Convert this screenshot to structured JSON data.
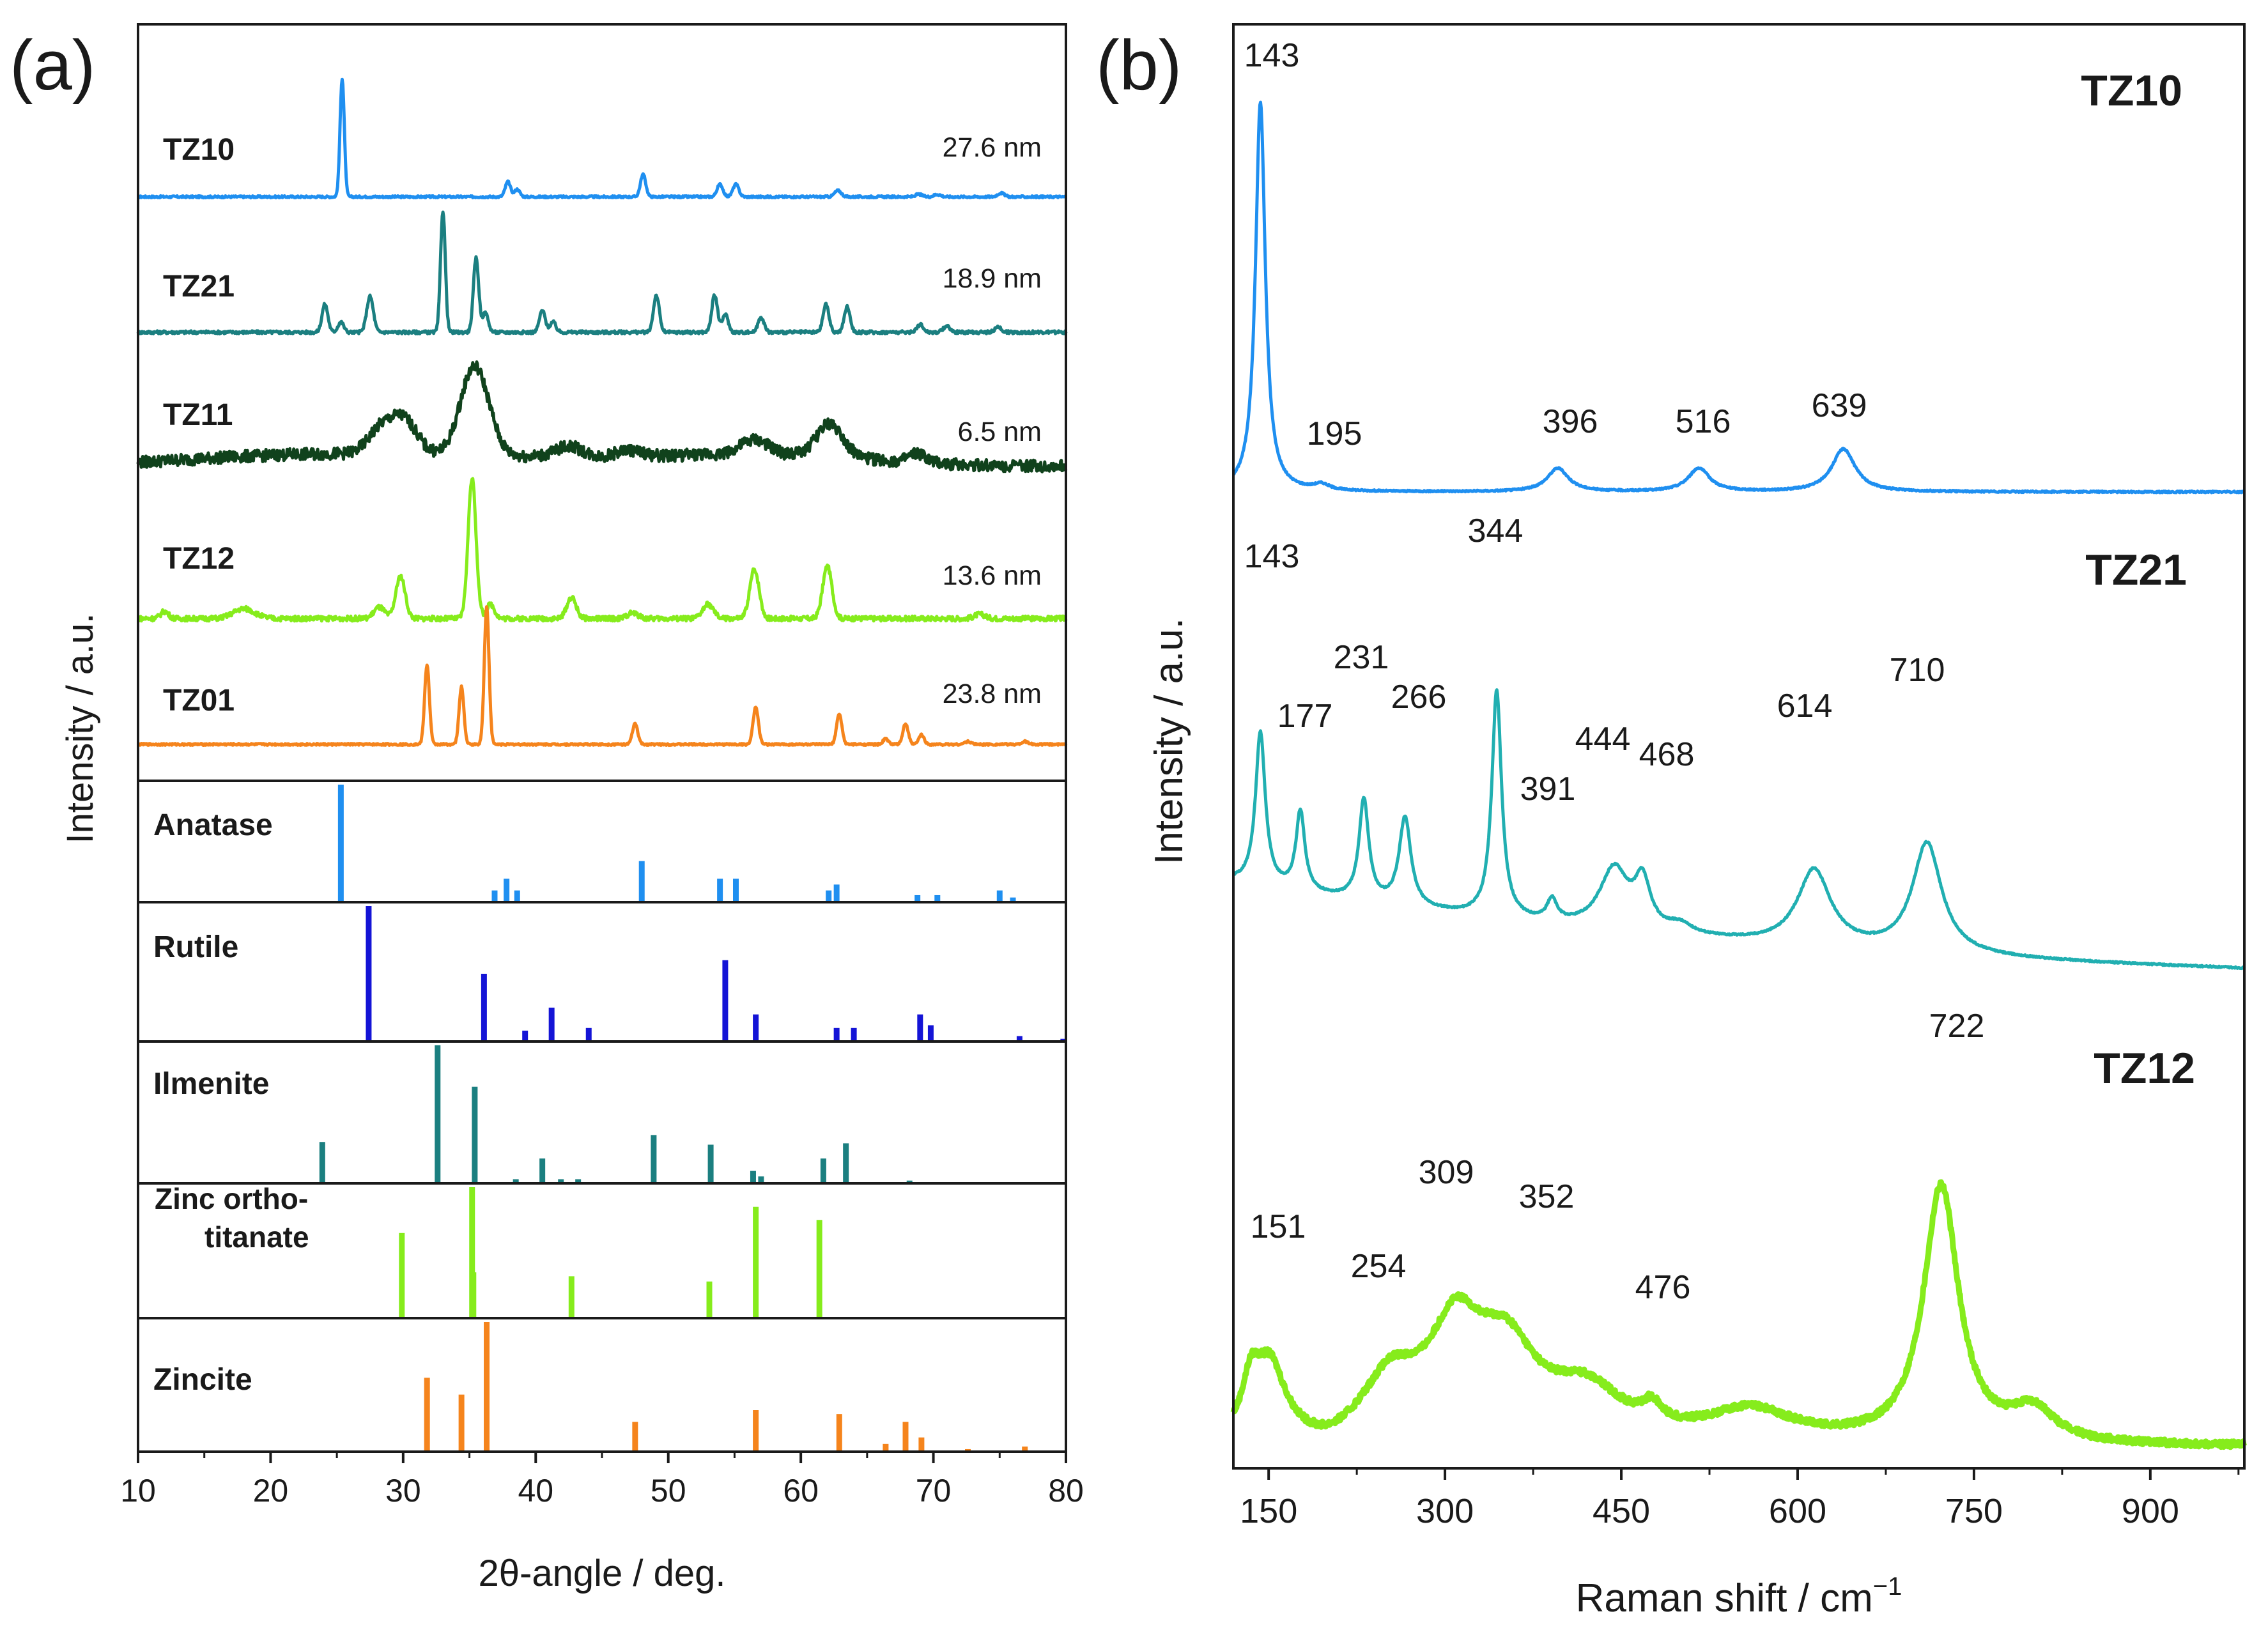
{
  "figure": {
    "panel_a_label": "(a)",
    "panel_b_label": "(b)",
    "text_color": "#1a1a1a"
  },
  "chart_data": [
    {
      "type": "line",
      "title": "(a)",
      "xlabel": "2θ-angle / deg.",
      "ylabel": "Intensity / a.u.",
      "xlim": [
        10,
        80
      ],
      "xticks": [
        10,
        20,
        30,
        40,
        50,
        60,
        70,
        80
      ],
      "grid": false,
      "series": [
        {
          "name": "TZ10",
          "crystallite_size": "27.6 nm",
          "color": "#1f8ff0",
          "noise": 0.8,
          "broad": [],
          "peaks": [
            [
              25.4,
              95,
              0.16
            ],
            [
              37.9,
              12,
              0.2
            ],
            [
              38.6,
              6,
              0.2
            ],
            [
              48.1,
              18,
              0.2
            ],
            [
              53.9,
              10,
              0.22
            ],
            [
              55.1,
              10,
              0.22
            ],
            [
              62.8,
              5,
              0.25
            ],
            [
              68.9,
              2,
              0.25
            ],
            [
              70.3,
              2,
              0.25
            ],
            [
              75.1,
              3,
              0.25
            ]
          ]
        },
        {
          "name": "TZ21",
          "crystallite_size": "18.9 nm",
          "color": "#1b7f80",
          "noise": 1.2,
          "broad": [],
          "peaks": [
            [
              24.1,
              22,
              0.22
            ],
            [
              25.3,
              8,
              0.22
            ],
            [
              27.5,
              28,
              0.25
            ],
            [
              33.0,
              95,
              0.18
            ],
            [
              35.5,
              58,
              0.2
            ],
            [
              36.2,
              15,
              0.22
            ],
            [
              40.5,
              17,
              0.22
            ],
            [
              41.3,
              8,
              0.22
            ],
            [
              49.1,
              29,
              0.22
            ],
            [
              53.5,
              29,
              0.22
            ],
            [
              54.3,
              14,
              0.22
            ],
            [
              57.0,
              12,
              0.22
            ],
            [
              61.9,
              22,
              0.22
            ],
            [
              63.5,
              20,
              0.22
            ],
            [
              69.0,
              6,
              0.25
            ],
            [
              71.0,
              5,
              0.25
            ],
            [
              74.9,
              4,
              0.25
            ]
          ]
        },
        {
          "name": "TZ11",
          "crystallite_size": "6.5 nm",
          "color": "#10421c",
          "noise": 5.5,
          "broad": [
            [
              33.0,
              10,
              10
            ],
            [
              57.0,
              11,
              8
            ],
            [
              19.0,
              6,
              8
            ]
          ],
          "peaks": [
            [
              28.2,
              20,
              0.9
            ],
            [
              30.0,
              32,
              1.0
            ],
            [
              35.3,
              78,
              1.0
            ],
            [
              36.5,
              10,
              0.8
            ],
            [
              42.5,
              10,
              1.0
            ],
            [
              47.0,
              6,
              1.0
            ],
            [
              56.5,
              13,
              1.0
            ],
            [
              62.2,
              30,
              1.0
            ],
            [
              68.8,
              8,
              0.6
            ]
          ]
        },
        {
          "name": "TZ12",
          "crystallite_size": "13.6 nm",
          "color": "#86ec1c",
          "noise": 1.8,
          "broad": [],
          "peaks": [
            [
              12.0,
              5,
              0.3
            ],
            [
              18.0,
              7,
              0.8
            ],
            [
              28.2,
              8,
              0.4
            ],
            [
              29.8,
              30,
              0.35
            ],
            [
              35.2,
              100,
              0.3
            ],
            [
              36.6,
              10,
              0.3
            ],
            [
              42.7,
              15,
              0.35
            ],
            [
              47.3,
              4,
              0.4
            ],
            [
              53.0,
              10,
              0.4
            ],
            [
              56.5,
              35,
              0.35
            ],
            [
              62.0,
              37,
              0.35
            ],
            [
              73.5,
              3,
              0.4
            ]
          ]
        },
        {
          "name": "TZ01",
          "crystallite_size": "23.8 nm",
          "color": "#f5841c",
          "noise": 0.7,
          "broad": [],
          "peaks": [
            [
              31.8,
              58,
              0.18
            ],
            [
              34.4,
              42,
              0.18
            ],
            [
              36.3,
              100,
              0.18
            ],
            [
              47.5,
              15,
              0.2
            ],
            [
              56.6,
              27,
              0.2
            ],
            [
              62.9,
              22,
              0.2
            ],
            [
              66.4,
              4,
              0.2
            ],
            [
              67.9,
              15,
              0.2
            ],
            [
              69.1,
              7,
              0.2
            ],
            [
              72.6,
              2,
              0.25
            ],
            [
              76.9,
              2,
              0.25
            ]
          ]
        }
      ],
      "references": [
        {
          "name": "Anatase",
          "color": "#1f8ff0",
          "lines": [
            [
              25.3,
              100
            ],
            [
              36.9,
              10
            ],
            [
              37.8,
              20
            ],
            [
              38.6,
              10
            ],
            [
              48.0,
              35
            ],
            [
              53.9,
              20
            ],
            [
              55.1,
              20
            ],
            [
              62.1,
              10
            ],
            [
              62.7,
              15
            ],
            [
              68.8,
              6
            ],
            [
              70.3,
              6
            ],
            [
              75.0,
              10
            ],
            [
              76.0,
              4
            ]
          ]
        },
        {
          "name": "Rutile",
          "color": "#1414d6",
          "lines": [
            [
              27.4,
              100
            ],
            [
              36.1,
              50
            ],
            [
              39.2,
              8
            ],
            [
              41.2,
              25
            ],
            [
              44.0,
              10
            ],
            [
              54.3,
              60
            ],
            [
              56.6,
              20
            ],
            [
              62.7,
              10
            ],
            [
              64.0,
              10
            ],
            [
              69.0,
              20
            ],
            [
              69.8,
              12
            ],
            [
              76.5,
              4
            ],
            [
              79.8,
              2
            ]
          ]
        },
        {
          "name": "Ilmenite",
          "color": "#1b7f80",
          "lines": [
            [
              23.9,
              30
            ],
            [
              32.6,
              100
            ],
            [
              35.4,
              70
            ],
            [
              38.5,
              3
            ],
            [
              40.5,
              18
            ],
            [
              41.9,
              3
            ],
            [
              43.2,
              3
            ],
            [
              48.9,
              35
            ],
            [
              53.2,
              28
            ],
            [
              56.4,
              9
            ],
            [
              57.0,
              5
            ],
            [
              61.7,
              18
            ],
            [
              63.4,
              29
            ],
            [
              68.2,
              2
            ]
          ]
        },
        {
          "name": "Zinc ortho-titanate",
          "color": "#86ec1c",
          "lines": [
            [
              29.9,
              65
            ],
            [
              35.2,
              100
            ],
            [
              35.3,
              35
            ],
            [
              42.7,
              32
            ],
            [
              53.1,
              28
            ],
            [
              56.6,
              85
            ],
            [
              61.4,
              75
            ]
          ]
        },
        {
          "name": "Zincite",
          "color": "#f5841c",
          "lines": [
            [
              31.8,
              57
            ],
            [
              34.4,
              44
            ],
            [
              36.3,
              100
            ],
            [
              47.5,
              23
            ],
            [
              56.6,
              32
            ],
            [
              62.9,
              29
            ],
            [
              66.4,
              6
            ],
            [
              67.9,
              23
            ],
            [
              69.1,
              11
            ],
            [
              72.6,
              2
            ],
            [
              76.9,
              4
            ]
          ]
        }
      ]
    },
    {
      "type": "line",
      "title": "(b)",
      "xlabel": "Raman shift / cm",
      "xlabel_sup": "−1",
      "ylabel": "Intensity / a.u.",
      "xlim": [
        120,
        980
      ],
      "xticks": [
        150,
        300,
        450,
        600,
        750,
        900
      ],
      "grid": false,
      "series": [
        {
          "name": "TZ10",
          "color": "#1f8ff0",
          "noise": 0.2,
          "lw": 5,
          "baseline": 0,
          "peaks": [
            [
              143,
              100,
              5
            ],
            [
              195,
              1.5,
              8
            ],
            [
              396,
              6,
              11
            ],
            [
              516,
              6,
              11
            ],
            [
              639,
              11,
              12
            ]
          ],
          "labels": [
            [
              143,
              "143"
            ],
            [
              195,
              "195"
            ],
            [
              396,
              "396"
            ],
            [
              516,
              "516"
            ],
            [
              639,
              "639"
            ]
          ]
        },
        {
          "name": "TZ21",
          "color": "#21afb1",
          "noise": 0.25,
          "lw": 5,
          "baseline": 1,
          "peaks": [
            [
              143,
              50,
              5
            ],
            [
              177,
              26,
              4.5
            ],
            [
              231,
              33,
              5
            ],
            [
              266,
              29,
              6
            ],
            [
              344,
              74,
              5
            ],
            [
              391,
              7,
              5
            ],
            [
              444,
              20,
              15
            ],
            [
              468,
              15,
              8
            ],
            [
              614,
              25,
              17
            ],
            [
              710,
              36,
              15
            ],
            [
              500,
              3,
              12
            ]
          ],
          "labels": [
            [
              143,
              "143"
            ],
            [
              177,
              "177"
            ],
            [
              231,
              "231"
            ],
            [
              266,
              "266"
            ],
            [
              344,
              "344"
            ],
            [
              391,
              "391"
            ],
            [
              444,
              "444"
            ],
            [
              468,
              "468"
            ],
            [
              614,
              "614"
            ],
            [
              710,
              "710"
            ]
          ]
        },
        {
          "name": "TZ12",
          "color": "#86ec1c",
          "noise": 1.0,
          "lw": 9,
          "baseline": 0,
          "peaks": [
            [
              135,
              15,
              9
            ],
            [
              151,
              23,
              16
            ],
            [
              254,
              18,
              30
            ],
            [
              309,
              32,
              28
            ],
            [
              352,
              26,
              32
            ],
            [
              420,
              15,
              38
            ],
            [
              476,
              6,
              10
            ],
            [
              560,
              10,
              45
            ],
            [
              722,
              82,
              18
            ],
            [
              800,
              10,
              22
            ]
          ],
          "labels": [
            [
              151,
              "151"
            ],
            [
              254,
              "254"
            ],
            [
              309,
              "309"
            ],
            [
              352,
              "352"
            ],
            [
              476,
              "476"
            ],
            [
              722,
              "722"
            ]
          ]
        }
      ]
    }
  ]
}
